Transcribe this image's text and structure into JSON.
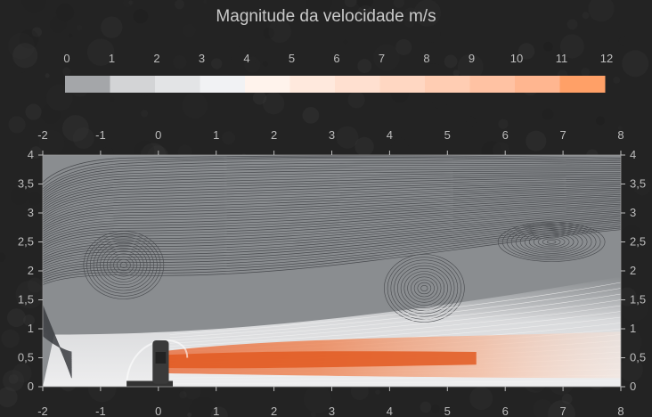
{
  "chart_data": {
    "type": "heatmap",
    "title": "Magnitude da velocidade m/s",
    "colorbar": {
      "ticks": [
        0,
        1,
        2,
        3,
        4,
        5,
        6,
        7,
        8,
        9,
        10,
        11,
        12
      ],
      "colors": [
        "#a4a6a9",
        "#d3d4d6",
        "#e3e4e6",
        "#f1f2f4",
        "#fff3ec",
        "#ffe9dd",
        "#ffe0d0",
        "#ffd7c2",
        "#ffcdb3",
        "#ffc2a3",
        "#ffb690",
        "#ffa067"
      ]
    },
    "xlim": [
      -2,
      8
    ],
    "ylim": [
      0,
      4
    ],
    "xticks": [
      -2,
      -1,
      0,
      1,
      2,
      3,
      4,
      5,
      6,
      7,
      8
    ],
    "yticks": [
      "0",
      "0,5",
      "1",
      "1,5",
      "2",
      "2,5",
      "3",
      "3,5",
      "4"
    ],
    "jet": {
      "origin": [
        0,
        0.45
      ],
      "core_speed_ms": 12,
      "reach_x": 8
    },
    "vortices": [
      {
        "center": [
          6.8,
          2.5
        ],
        "label": "vortex"
      },
      {
        "center": [
          -0.6,
          2.1
        ],
        "label": "vortex"
      },
      {
        "center": [
          4.6,
          1.7
        ],
        "label": "vortex"
      }
    ],
    "grid": false,
    "colors": {
      "background": "#1f1f1f",
      "field": "#8a8d90",
      "streamline": "#3c3e42",
      "axis_text": "#bdbdbd"
    }
  }
}
